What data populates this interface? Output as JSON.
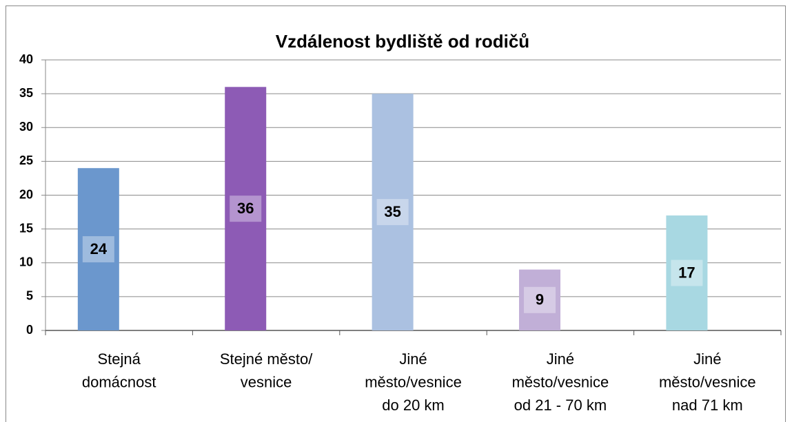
{
  "chart_data": {
    "type": "bar",
    "title": "Vzdálenost bydliště od rodičů",
    "categories": [
      [
        "Stejná",
        "domácnost"
      ],
      [
        "Stejné město/",
        "vesnice"
      ],
      [
        "Jiné",
        "město/vesnice",
        "do 20 km"
      ],
      [
        "Jiné",
        "město/vesnice",
        "od 21 - 70 km"
      ],
      [
        "Jiné",
        "město/vesnice",
        "nad 71 km"
      ]
    ],
    "values": [
      24,
      36,
      35,
      9,
      17
    ],
    "colors": [
      "#6b97cd",
      "#8d5bb5",
      "#abc1e1",
      "#c1afd7",
      "#a8d8e2"
    ],
    "ylim": [
      0,
      40
    ],
    "yticks": [
      0,
      5,
      10,
      15,
      20,
      25,
      30,
      35,
      40
    ],
    "grid": true
  }
}
